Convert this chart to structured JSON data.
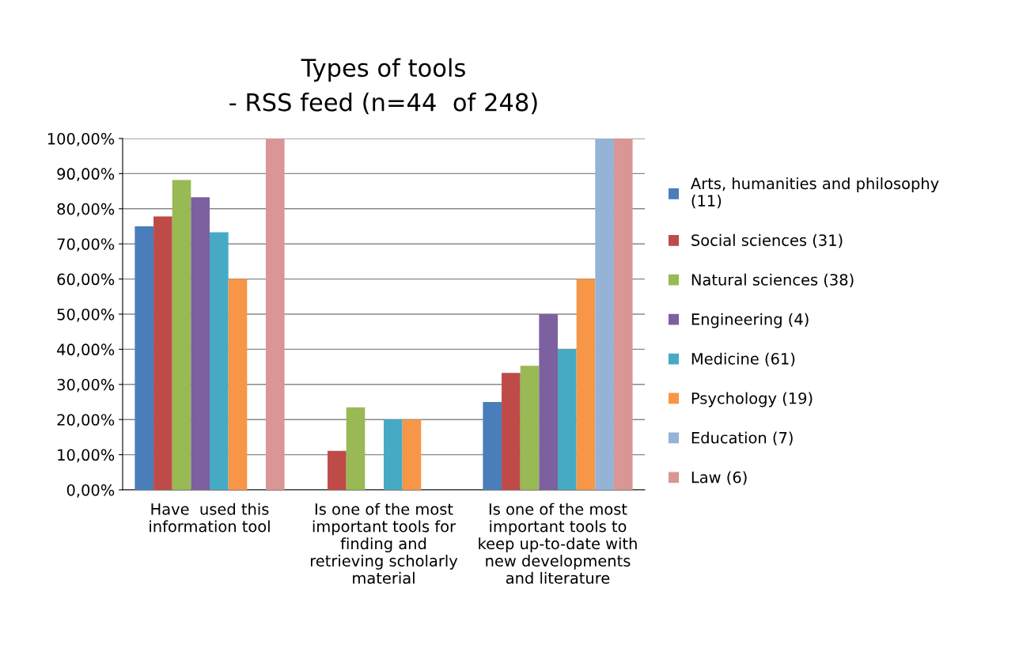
{
  "chart_data": {
    "type": "bar",
    "title": "Types of tools\n- RSS feed (n=44  of 248)",
    "categories": [
      "Have  used this\ninformation tool",
      "Is one of the most\nimportant tools for\nfinding and\nretrieving scholarly\nmaterial",
      "Is one of the most\nimportant tools to\nkeep up-to-date with\nnew developments\nand literature"
    ],
    "series": [
      {
        "name": "Arts, humanities and philosophy\n(11)",
        "color": "#4a7ebb",
        "values": [
          75,
          0,
          25
        ]
      },
      {
        "name": "Social sciences (31)",
        "color": "#be4b48",
        "values": [
          77.8,
          11.1,
          33.3
        ]
      },
      {
        "name": "Natural sciences (38)",
        "color": "#98b954",
        "values": [
          88.2,
          23.5,
          35.3
        ]
      },
      {
        "name": "Engineering (4)",
        "color": "#7d60a0",
        "values": [
          83.3,
          0,
          50
        ]
      },
      {
        "name": "Medicine (61)",
        "color": "#46aac5",
        "values": [
          73.3,
          20,
          40
        ]
      },
      {
        "name": "Psychology (19)",
        "color": "#f79646",
        "values": [
          60,
          20,
          60
        ]
      },
      {
        "name": "Education (7)",
        "color": "#95b3d7",
        "values": [
          0,
          0,
          100
        ]
      },
      {
        "name": "Law (6)",
        "color": "#d99694",
        "values": [
          100,
          0,
          100
        ]
      }
    ],
    "ylim": [
      0,
      100
    ],
    "yticks": [
      {
        "value": 0,
        "label": "0,00%"
      },
      {
        "value": 10,
        "label": "10,00%"
      },
      {
        "value": 20,
        "label": "20,00%"
      },
      {
        "value": 30,
        "label": "30,00%"
      },
      {
        "value": 40,
        "label": "40,00%"
      },
      {
        "value": 50,
        "label": "50,00%"
      },
      {
        "value": 60,
        "label": "60,00%"
      },
      {
        "value": 70,
        "label": "70,00%"
      },
      {
        "value": 80,
        "label": "80,00%"
      },
      {
        "value": 90,
        "label": "90,00%"
      },
      {
        "value": 100,
        "label": "100,00%"
      }
    ],
    "grid": "y",
    "legend": "right"
  }
}
